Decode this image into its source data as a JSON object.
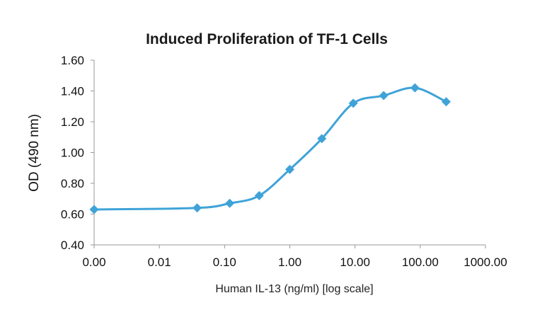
{
  "chart_data": {
    "type": "line",
    "title": "Induced Proliferation of TF-1 Cells",
    "xlabel": "Human IL-13 (ng/ml) [log scale]",
    "ylabel": "OD (490 nm)",
    "x_scale": "log",
    "x_tick_labels": [
      "0.00",
      "0.01",
      "0.10",
      "1.00",
      "10.00",
      "100.00",
      "1000.00"
    ],
    "y_tick_labels": [
      "0.40",
      "0.60",
      "0.80",
      "1.00",
      "1.20",
      "1.40",
      "1.60"
    ],
    "xlim": [
      0.001,
      1000
    ],
    "ylim": [
      0.4,
      1.6
    ],
    "grid": false,
    "legend": "none",
    "series": [
      {
        "color": "#3fa3d8",
        "x": [
          0.001,
          0.038,
          0.12,
          0.34,
          1.0,
          3.1,
          9.4,
          27.5,
          83,
          250
        ],
        "y": [
          0.63,
          0.64,
          0.67,
          0.72,
          0.89,
          1.09,
          1.32,
          1.37,
          1.42,
          1.33
        ]
      }
    ]
  }
}
